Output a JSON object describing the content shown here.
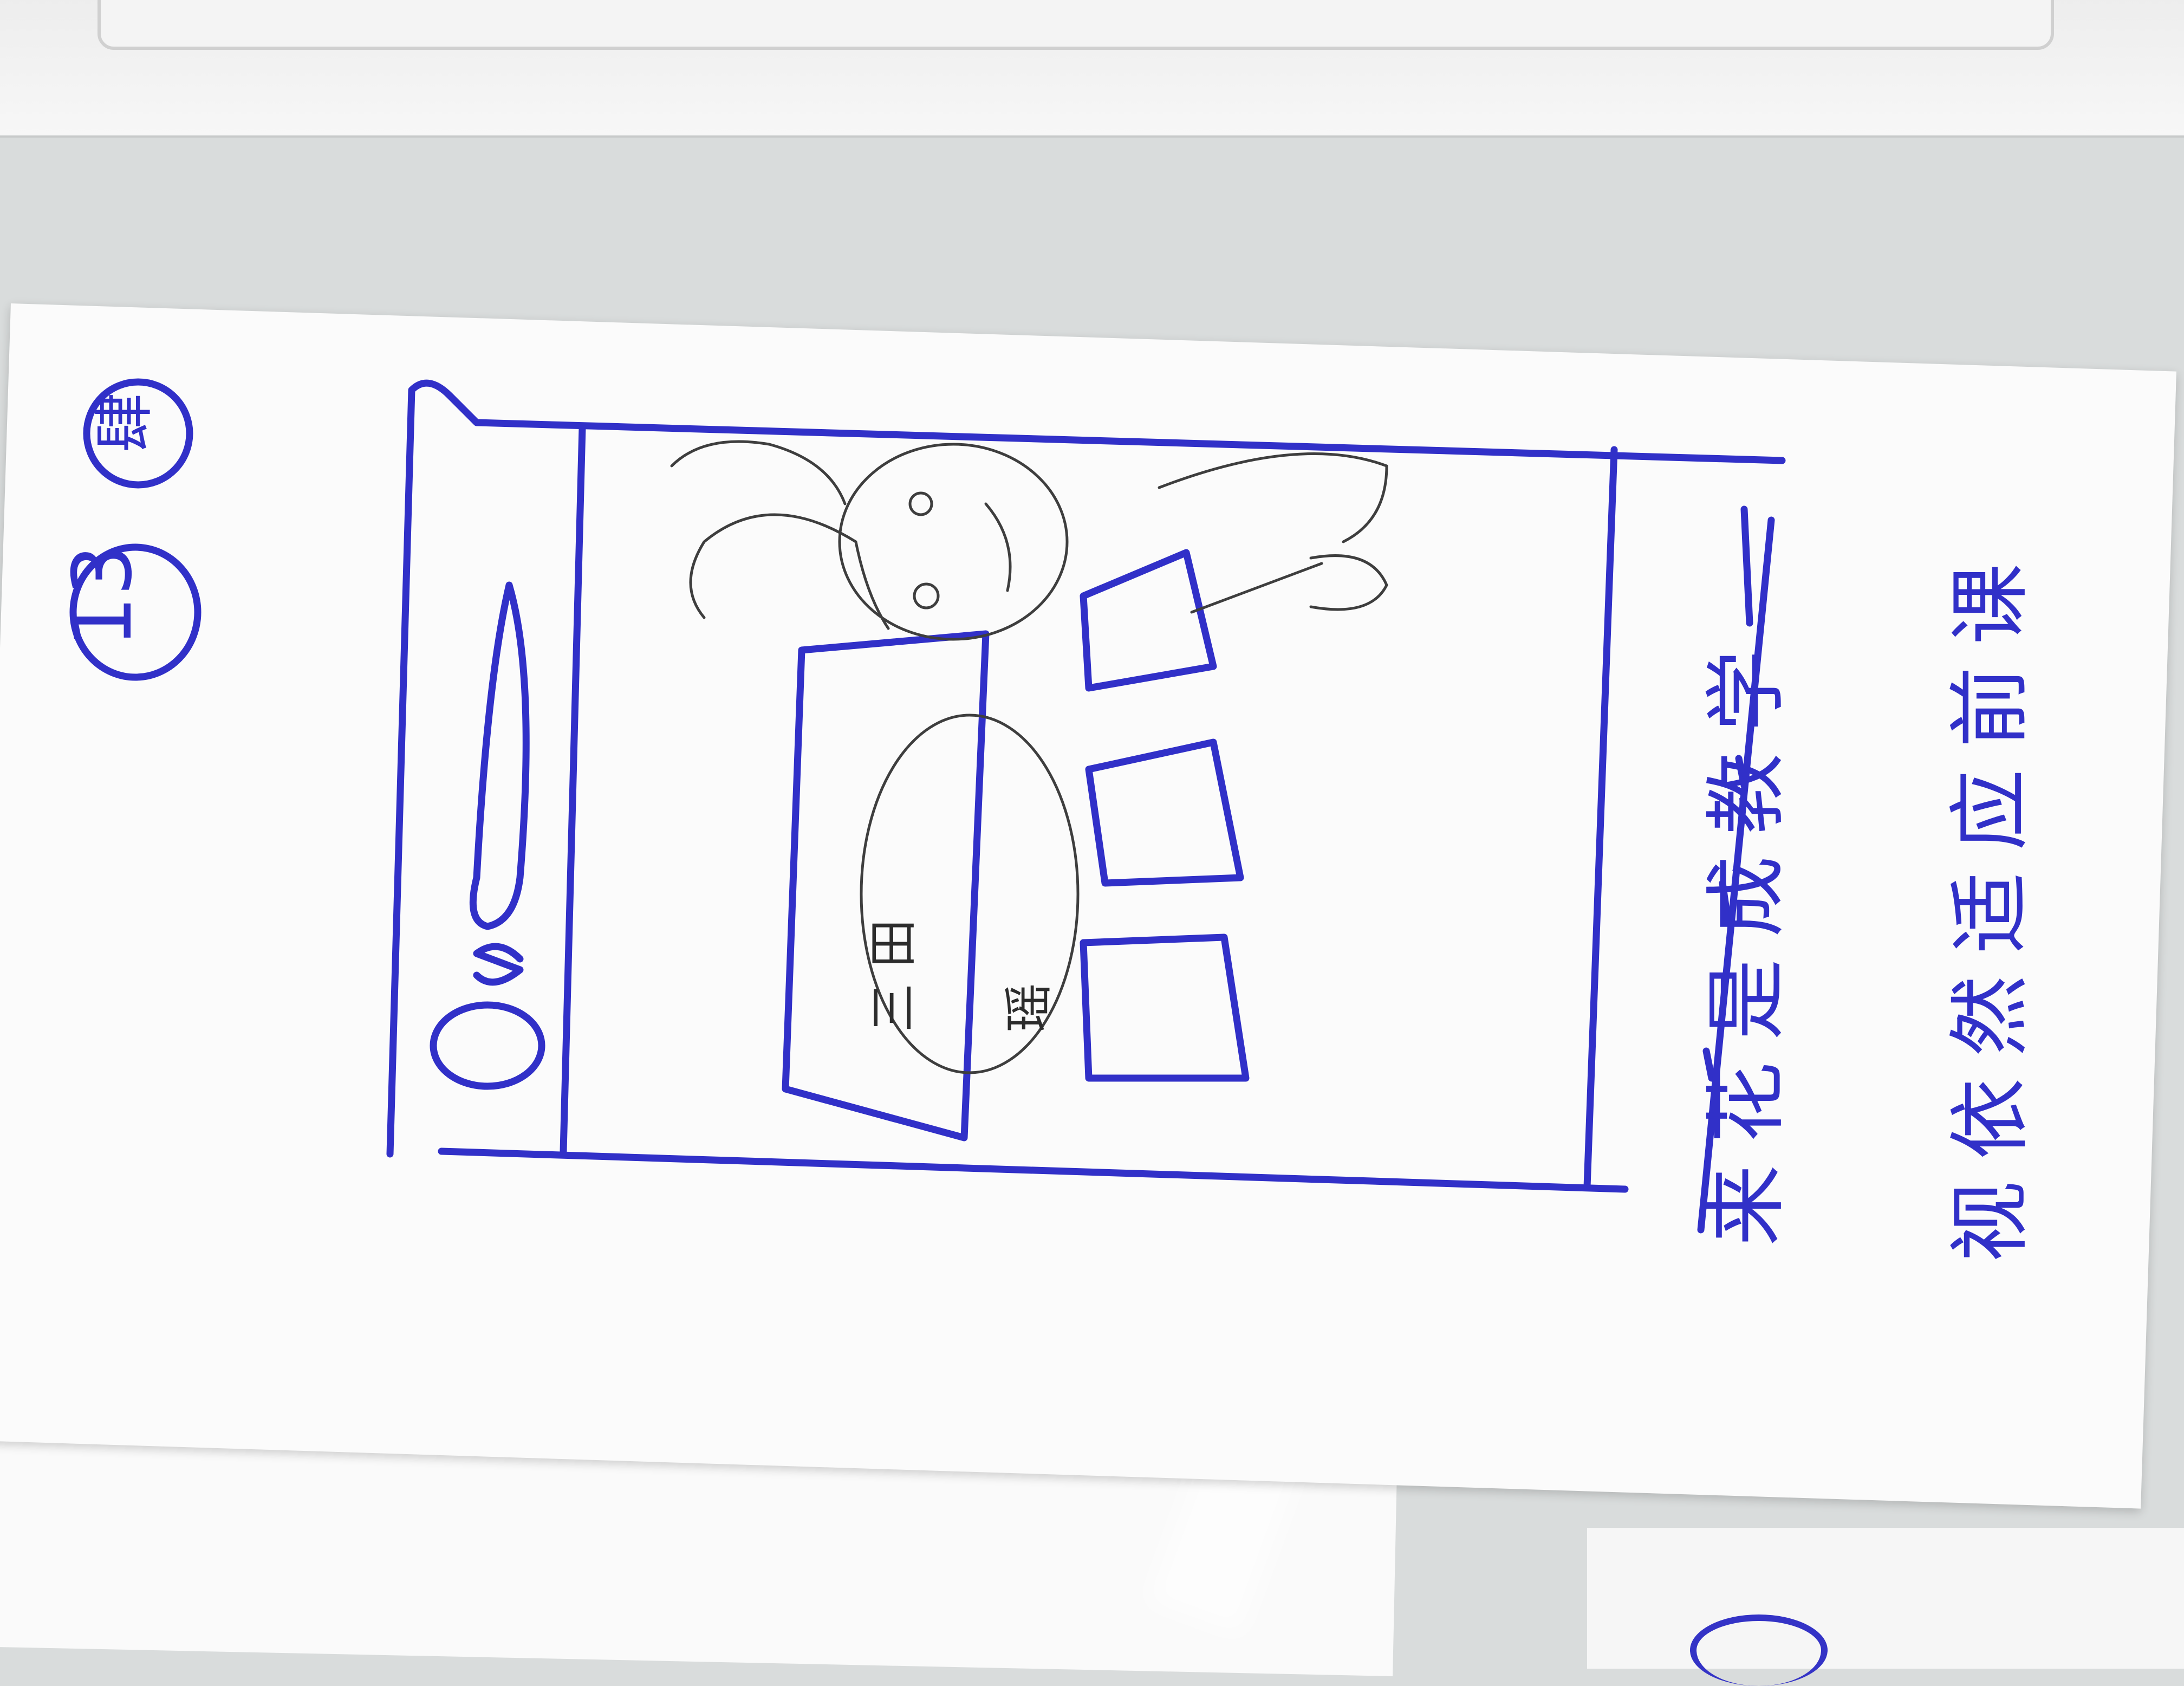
{
  "page_number": "13",
  "badge_char": "肆",
  "caption": {
    "line1": "来花是成教学",
    "line2": "视依然适应前课"
  },
  "pencil_labels": {
    "label1": "三 田",
    "label2": "瑶"
  },
  "colors": {
    "ink": "#3130c8",
    "pencil": "#3e3e3e",
    "paper": "#fbfbfb",
    "background": "#d9dcdc"
  }
}
